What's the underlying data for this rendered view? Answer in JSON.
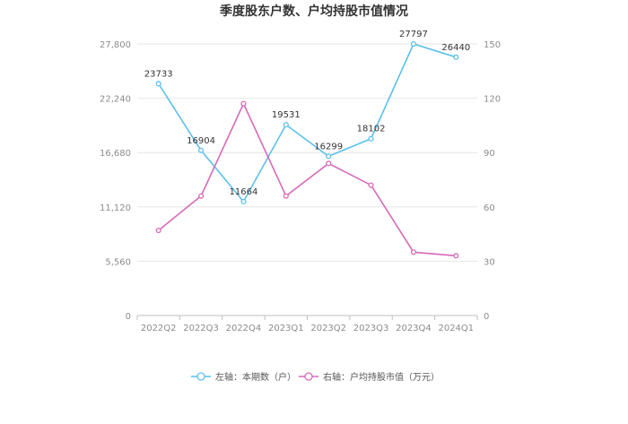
{
  "chart_data": {
    "type": "line",
    "title": "季度股东户数、户均持股市值情况",
    "categories": [
      "2022Q2",
      "2022Q3",
      "2022Q4",
      "2023Q1",
      "2023Q2",
      "2023Q3",
      "2023Q4",
      "2024Q1"
    ],
    "y_left": {
      "ticks": [
        "0",
        "5,560",
        "11,120",
        "16,680",
        "22,240",
        "27,800"
      ],
      "range": [
        0,
        27800
      ]
    },
    "y_right": {
      "ticks": [
        "0",
        "30",
        "60",
        "90",
        "120",
        "150"
      ],
      "range": [
        0,
        150
      ]
    },
    "series": [
      {
        "name": "左轴：本期数（户）",
        "axis": "left",
        "color": "#5bc0eb",
        "values": [
          23733,
          16904,
          11664,
          19531,
          16299,
          18102,
          27797,
          26440
        ],
        "labels": [
          "23733",
          "16904",
          "11664",
          "19531",
          "16299",
          "18102",
          "27797",
          "26440"
        ]
      },
      {
        "name": "右轴：户均持股市值（万元）",
        "axis": "right",
        "color": "#d66ab8",
        "values": [
          47,
          66,
          117,
          66,
          84,
          72,
          35,
          33
        ]
      }
    ],
    "grid": true,
    "legend": "bottom-center"
  }
}
